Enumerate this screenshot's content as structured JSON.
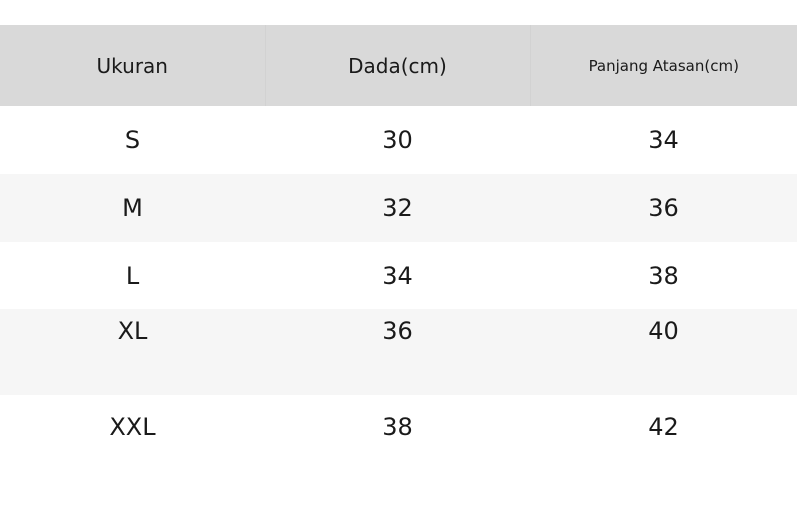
{
  "table": {
    "headers": [
      "Ukuran",
      "Dada(cm)",
      "Panjang Atasan(cm)"
    ],
    "rows": [
      [
        "S",
        "30",
        "34"
      ],
      [
        "M",
        "32",
        "36"
      ],
      [
        "L",
        "34",
        "38"
      ],
      [
        "XL",
        "36",
        "40"
      ],
      [
        "XXL",
        "38",
        "42"
      ]
    ]
  },
  "colors": {
    "header_bg": "#d9d9d9",
    "alt_row_bg": "#f6f6f6",
    "text": "#1a1a1a"
  }
}
